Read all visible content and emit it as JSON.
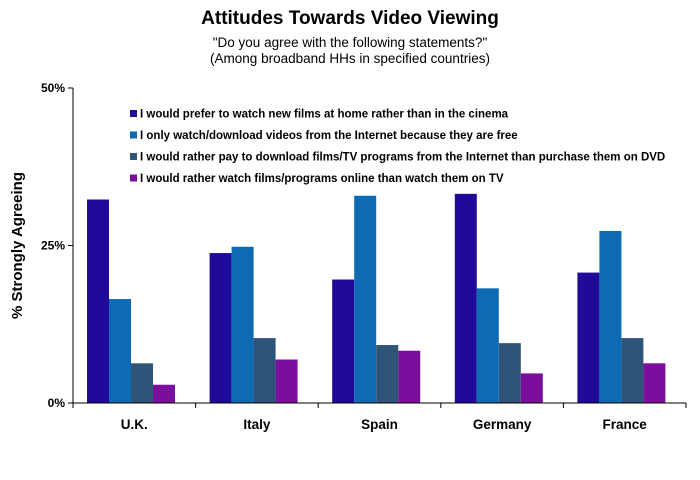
{
  "chart_data": {
    "type": "bar",
    "title": "Attitudes Towards Video Viewing",
    "subtitle_lines": [
      "\"Do you agree with the following statements?\"",
      "(Among broadband HHs in specified countries)"
    ],
    "ylabel": "% Strongly Agreeing",
    "xlabel": "",
    "ylim": [
      0,
      50
    ],
    "yticks": [
      "0%",
      "25%",
      "50%"
    ],
    "yticks_values": [
      0,
      25,
      50
    ],
    "grid": false,
    "legend_position": "top-left",
    "categories": [
      "U.K.",
      "Italy",
      "Spain",
      "Germany",
      "France"
    ],
    "series": [
      {
        "name": "I would prefer to watch new films at home rather than in the cinema",
        "color": "#1f0a99",
        "values": [
          32.3,
          23.8,
          19.6,
          33.2,
          20.7
        ]
      },
      {
        "name": "I only watch/download videos from the Internet because they are free",
        "color": "#0e6ab3",
        "values": [
          16.5,
          24.8,
          32.9,
          18.2,
          27.3
        ]
      },
      {
        "name": "I would rather pay to download films/TV programs from the Internet than purchase them on DVD",
        "color": "#2e5578",
        "values": [
          6.3,
          10.3,
          9.2,
          9.5,
          10.3
        ]
      },
      {
        "name": "I would rather watch films/programs online than watch them on TV",
        "color": "#7a0f9e",
        "values": [
          2.9,
          6.9,
          8.3,
          4.7,
          6.3
        ]
      }
    ]
  }
}
